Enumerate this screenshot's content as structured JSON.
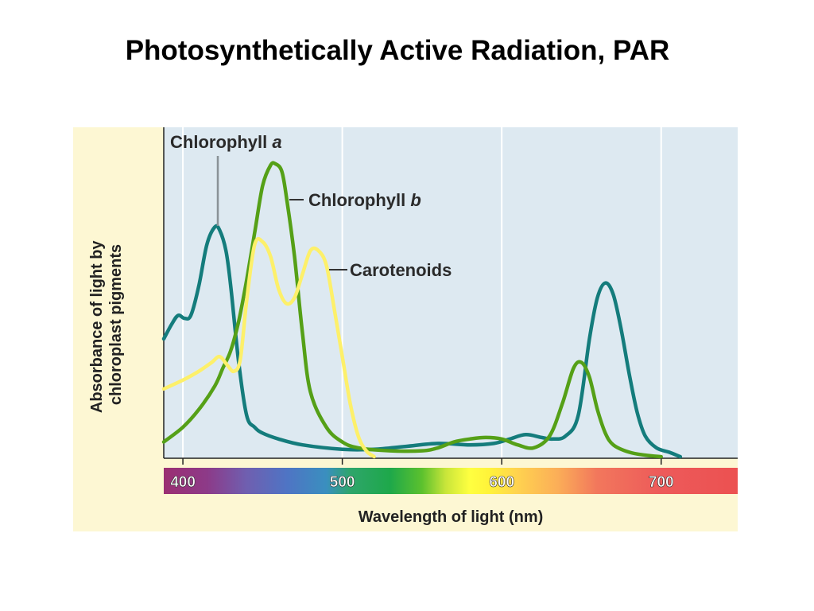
{
  "title": "Photosynthetically Active Radiation, PAR",
  "chart_data": {
    "type": "line",
    "title": "Photosynthetically Active Radiation, PAR",
    "xlabel": "Wavelength of light (nm)",
    "ylabel": "Absorbance of light by chloroplast pigments",
    "xlim": [
      388,
      748
    ],
    "ylim": [
      0,
      1
    ],
    "x_ticks": [
      "400",
      "500",
      "600",
      "700"
    ],
    "x_tick_values": [
      400,
      500,
      600,
      700
    ],
    "y_ticks": [],
    "grid": true,
    "legend": "inline labels",
    "colors": {
      "chlorophyll_a": "#147c7c",
      "chlorophyll_b": "#55a017",
      "carotenoids": "#fdf06a",
      "plot_background": "#dde9f1",
      "panel_background": "#fdf7d3"
    },
    "series": [
      {
        "name": "Chlorophyll a",
        "label_prefix": "Chlorophyll ",
        "label_italic": "a",
        "color": "#147c7c",
        "x": [
          388,
          393,
          397,
          401,
          405,
          410,
          415,
          420,
          423,
          427,
          430,
          435,
          440,
          445,
          450,
          460,
          475,
          500,
          520,
          540,
          560,
          580,
          595,
          605,
          615,
          625,
          632,
          640,
          648,
          655,
          660,
          665,
          670,
          675,
          680,
          685,
          690,
          697,
          705,
          712
        ],
        "y": [
          0.4,
          0.45,
          0.48,
          0.47,
          0.48,
          0.58,
          0.72,
          0.78,
          0.77,
          0.7,
          0.58,
          0.32,
          0.14,
          0.1,
          0.08,
          0.06,
          0.04,
          0.025,
          0.025,
          0.035,
          0.045,
          0.04,
          0.045,
          0.06,
          0.075,
          0.065,
          0.06,
          0.07,
          0.14,
          0.4,
          0.54,
          0.59,
          0.55,
          0.43,
          0.28,
          0.15,
          0.07,
          0.03,
          0.015,
          0.0
        ]
      },
      {
        "name": "Chlorophyll b",
        "label_prefix": "Chlorophyll ",
        "label_italic": "b",
        "color": "#55a017",
        "x": [
          388,
          400,
          410,
          420,
          425,
          430,
          435,
          440,
          445,
          450,
          455,
          458,
          462,
          465,
          470,
          475,
          480,
          490,
          500,
          510,
          530,
          550,
          560,
          570,
          580,
          590,
          600,
          610,
          620,
          630,
          638,
          645,
          650,
          655,
          660,
          665,
          670,
          680,
          690,
          700
        ],
        "y": [
          0.05,
          0.1,
          0.16,
          0.24,
          0.3,
          0.36,
          0.46,
          0.6,
          0.76,
          0.92,
          0.99,
          0.995,
          0.97,
          0.88,
          0.68,
          0.42,
          0.22,
          0.1,
          0.05,
          0.03,
          0.02,
          0.02,
          0.03,
          0.05,
          0.06,
          0.065,
          0.06,
          0.04,
          0.03,
          0.07,
          0.18,
          0.3,
          0.32,
          0.27,
          0.16,
          0.08,
          0.04,
          0.015,
          0.005,
          0.0
        ]
      },
      {
        "name": "Carotenoids",
        "label_prefix": "Carotenoids",
        "label_italic": "",
        "color": "#fdf06a",
        "x": [
          388,
          400,
          410,
          418,
          423,
          428,
          432,
          436,
          440,
          445,
          450,
          455,
          460,
          465,
          470,
          475,
          480,
          485,
          490,
          495,
          500,
          505,
          510,
          515,
          520
        ],
        "y": [
          0.23,
          0.26,
          0.29,
          0.32,
          0.34,
          0.31,
          0.29,
          0.33,
          0.53,
          0.72,
          0.73,
          0.68,
          0.57,
          0.52,
          0.54,
          0.62,
          0.7,
          0.7,
          0.65,
          0.5,
          0.34,
          0.18,
          0.07,
          0.02,
          0.0
        ]
      }
    ],
    "spectrum_bar": {
      "stops": [
        [
          388,
          "#9b2f72"
        ],
        [
          415,
          "#8d3a88"
        ],
        [
          440,
          "#6f5fb0"
        ],
        [
          465,
          "#4f74c4"
        ],
        [
          490,
          "#3a8fbf"
        ],
        [
          505,
          "#2ea56b"
        ],
        [
          530,
          "#1ea84a"
        ],
        [
          550,
          "#5cc12e"
        ],
        [
          565,
          "#c9e63a"
        ],
        [
          580,
          "#ffff40"
        ],
        [
          592,
          "#fff33a"
        ],
        [
          610,
          "#ffd24f"
        ],
        [
          635,
          "#fbae58"
        ],
        [
          660,
          "#f2775c"
        ],
        [
          700,
          "#ed5a5a"
        ],
        [
          748,
          "#ec5151"
        ]
      ]
    }
  }
}
